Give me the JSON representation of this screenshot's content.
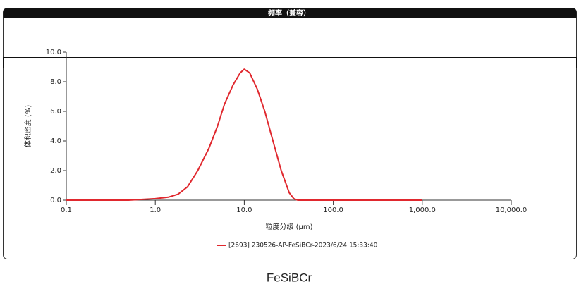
{
  "chart_data": {
    "type": "line",
    "title": "频率（兼容）",
    "xlabel": "粒度分级 (μm)",
    "ylabel": "体积密度 (%)",
    "x": [
      0.1,
      0.5,
      1,
      1.4,
      1.8,
      2.3,
      3,
      4,
      5,
      6,
      7.5,
      9,
      10,
      11.5,
      14,
      17,
      21,
      26,
      32,
      36,
      40,
      100,
      1000
    ],
    "series": [
      {
        "name": "[2693] 230526-AP-FeSiBCr-2023/6/24 15:33:40",
        "color": "#e0282e",
        "values": [
          0,
          0,
          0.1,
          0.2,
          0.4,
          0.9,
          2,
          3.5,
          5,
          6.5,
          7.8,
          8.6,
          8.85,
          8.6,
          7.5,
          6,
          4,
          2,
          0.5,
          0.1,
          0,
          0,
          0
        ]
      }
    ],
    "xscale": "log",
    "xlim": [
      0.1,
      10000
    ],
    "xticks": [
      0.1,
      {
        "value": 1,
        "label": "1.0"
      },
      {
        "value": 10,
        "label": "10.0"
      },
      {
        "value": 100,
        "label": "100.0"
      },
      {
        "value": 1000,
        "label": "1,000.0"
      },
      {
        "value": 10000,
        "label": "10,000.0"
      }
    ],
    "ylim": [
      0,
      10
    ],
    "yticks": [
      {
        "value": 0,
        "label": "0.0"
      },
      {
        "value": 2,
        "label": "2.0"
      },
      {
        "value": 4,
        "label": "4.0"
      },
      {
        "value": 6,
        "label": "6.0"
      },
      {
        "value": 8,
        "label": "8.0"
      },
      {
        "value": 10,
        "label": "10.0"
      }
    ]
  },
  "caption": "FeSiBCr"
}
